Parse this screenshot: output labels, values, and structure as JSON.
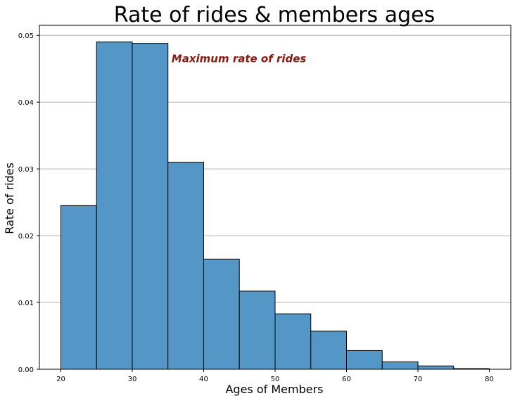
{
  "chart_data": {
    "type": "bar",
    "title": "Rate of rides & members ages",
    "xlabel": "Ages of Members",
    "ylabel": "Rate of rides",
    "bin_edges": [
      20,
      25,
      30,
      35,
      40,
      45,
      50,
      55,
      60,
      65,
      70,
      75,
      80
    ],
    "values": [
      0.0245,
      0.049,
      0.0488,
      0.031,
      0.0165,
      0.0117,
      0.0083,
      0.0057,
      0.0028,
      0.0011,
      0.0005,
      0.0001
    ],
    "xlim": [
      17,
      83
    ],
    "ylim": [
      0,
      0.0515
    ],
    "xticks": [
      20,
      30,
      40,
      50,
      60,
      70,
      80
    ],
    "yticks": [
      0.0,
      0.01,
      0.02,
      0.03,
      0.04,
      0.05
    ],
    "ytick_labels": [
      "0.00",
      "0.01",
      "0.02",
      "0.03",
      "0.04",
      "0.05"
    ],
    "grid": "horizontal",
    "annotation": {
      "text": "Maximum rate of rides",
      "x": 35.5,
      "y": 0.0465,
      "color": "#8b1a10"
    },
    "bar_color": "#5497c7",
    "bar_edge_color": "#000000",
    "grid_color": "#b0b0b0"
  }
}
